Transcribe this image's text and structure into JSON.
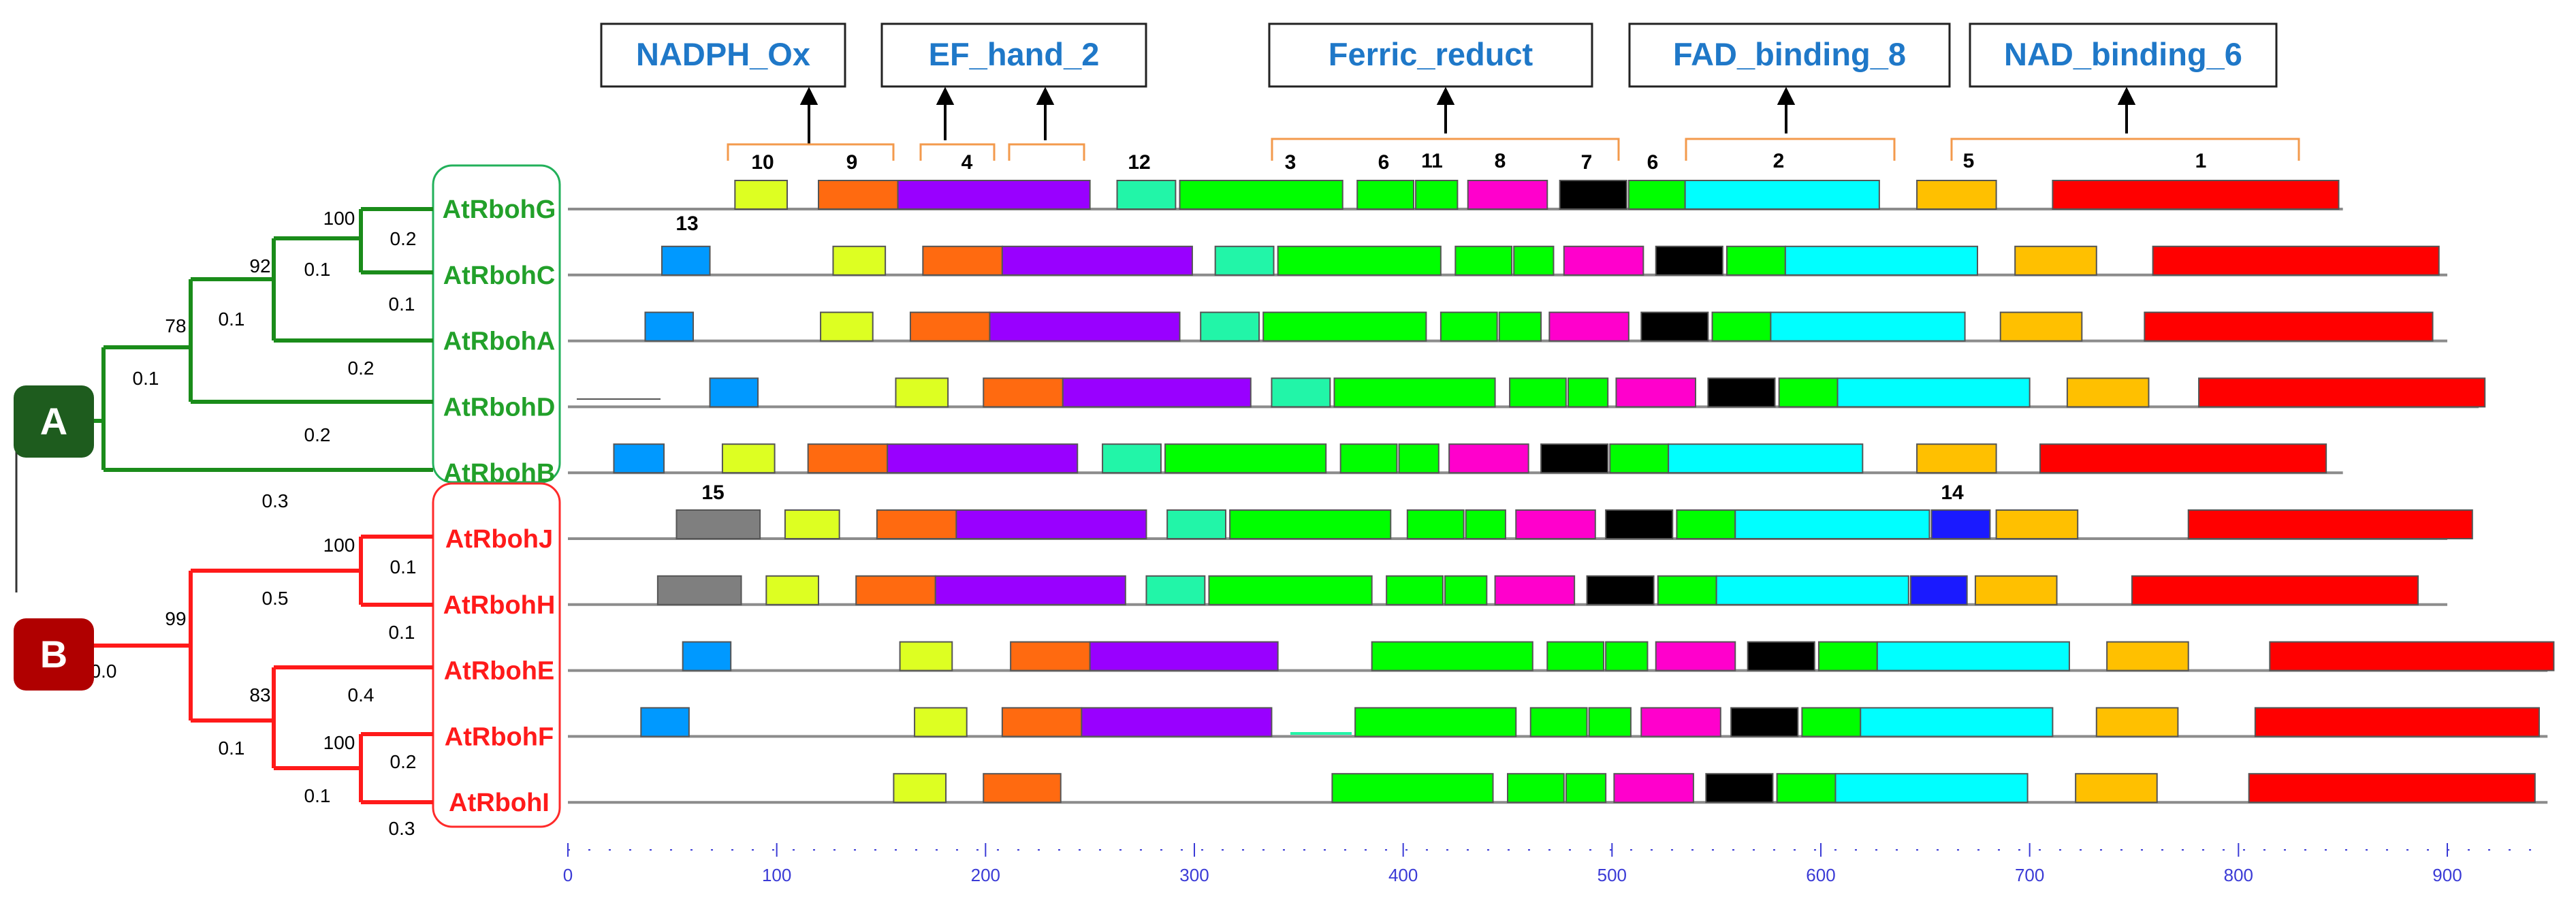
{
  "domains": [
    {
      "label": "NADPH_Ox"
    },
    {
      "label": "EF_hand_2"
    },
    {
      "label": "Ferric_reduct"
    },
    {
      "label": "FAD_binding_8"
    },
    {
      "label": "NAD_binding_6"
    }
  ],
  "motif_colors": {
    "1": "#ff0000",
    "2": "#00ffff",
    "3": "#00ff00",
    "4": "#9900ff",
    "5": "#ffc000",
    "6": "#00ff00",
    "7": "#000000",
    "8": "#ff00cc",
    "9": "#ff6a10",
    "10": "#ddff22",
    "11": "#00ff00",
    "12": "#22f5a8",
    "13": "#0099ff",
    "14": "#1a1aff",
    "15": "#7f7f7f"
  },
  "motif_header_labels": [
    "10",
    "9",
    "4",
    "12",
    "3",
    "6",
    "11",
    "8",
    "7",
    "6",
    "2",
    "5",
    "1"
  ],
  "extra_labels": [
    "13",
    "15",
    "14"
  ],
  "clades": [
    {
      "letter": "A",
      "color": "#1e5c1e",
      "line_color": "#1a8c1a"
    },
    {
      "letter": "B",
      "color": "#b00000",
      "line_color": "#ff1a1a"
    }
  ],
  "proteins": [
    {
      "name": "AtRbohG",
      "clade": "A",
      "line": [
        0,
        850
      ],
      "motifs": [
        [
          80,
          105,
          "10"
        ],
        [
          120,
          158,
          "9"
        ],
        [
          158,
          250,
          "4"
        ],
        [
          263,
          291,
          "12"
        ],
        [
          293,
          371,
          "3"
        ],
        [
          378,
          405,
          "6"
        ],
        [
          406,
          426,
          "11"
        ],
        [
          431,
          469,
          "8"
        ],
        [
          475,
          507,
          "7"
        ],
        [
          508,
          535,
          "6"
        ],
        [
          535,
          628,
          "2"
        ],
        [
          646,
          684,
          "5"
        ],
        [
          711,
          848,
          "1"
        ]
      ]
    },
    {
      "name": "AtRbohC",
      "clade": "A",
      "line": [
        0,
        900
      ],
      "motifs": [
        [
          45,
          68,
          "13"
        ],
        [
          127,
          152,
          "10"
        ],
        [
          170,
          208,
          "9"
        ],
        [
          208,
          299,
          "4"
        ],
        [
          310,
          338,
          "12"
        ],
        [
          340,
          418,
          "3"
        ],
        [
          425,
          452,
          "6"
        ],
        [
          453,
          472,
          "11"
        ],
        [
          477,
          515,
          "8"
        ],
        [
          521,
          553,
          "7"
        ],
        [
          555,
          583,
          "6"
        ],
        [
          583,
          675,
          "2"
        ],
        [
          693,
          732,
          "5"
        ],
        [
          759,
          896,
          "1"
        ]
      ]
    },
    {
      "name": "AtRbohA",
      "clade": "A",
      "line": [
        0,
        900
      ],
      "motifs": [
        [
          37,
          60,
          "13"
        ],
        [
          121,
          146,
          "10"
        ],
        [
          164,
          202,
          "9"
        ],
        [
          202,
          293,
          "4"
        ],
        [
          303,
          331,
          "12"
        ],
        [
          333,
          411,
          "3"
        ],
        [
          418,
          445,
          "6"
        ],
        [
          446,
          466,
          "11"
        ],
        [
          470,
          508,
          "8"
        ],
        [
          514,
          546,
          "7"
        ],
        [
          548,
          576,
          "6"
        ],
        [
          576,
          669,
          "2"
        ],
        [
          686,
          725,
          "5"
        ],
        [
          755,
          893,
          "1"
        ]
      ]
    },
    {
      "name": "AtRbohD",
      "clade": "A",
      "line": [
        0,
        915
      ],
      "motifs": [
        [
          68,
          91,
          "13"
        ],
        [
          157,
          182,
          "10"
        ],
        [
          199,
          237,
          "9"
        ],
        [
          237,
          327,
          "4"
        ],
        [
          337,
          365,
          "12"
        ],
        [
          367,
          444,
          "3"
        ],
        [
          451,
          478,
          "6"
        ],
        [
          479,
          498,
          "11"
        ],
        [
          502,
          540,
          "8"
        ],
        [
          546,
          578,
          "7"
        ],
        [
          580,
          608,
          "6"
        ],
        [
          608,
          700,
          "2"
        ],
        [
          718,
          757,
          "5"
        ],
        [
          781,
          918,
          "1"
        ]
      ]
    },
    {
      "name": "AtRbohB",
      "clade": "A",
      "line": [
        0,
        850
      ],
      "motifs": [
        [
          22,
          46,
          "13"
        ],
        [
          74,
          99,
          "10"
        ],
        [
          115,
          153,
          "9"
        ],
        [
          153,
          244,
          "4"
        ],
        [
          256,
          284,
          "12"
        ],
        [
          286,
          363,
          "3"
        ],
        [
          370,
          397,
          "6"
        ],
        [
          398,
          417,
          "11"
        ],
        [
          422,
          460,
          "8"
        ],
        [
          466,
          498,
          "7"
        ],
        [
          499,
          527,
          "6"
        ],
        [
          527,
          620,
          "2"
        ],
        [
          646,
          684,
          "5"
        ],
        [
          705,
          842,
          "1"
        ]
      ]
    },
    {
      "name": "AtRbohJ",
      "clade": "B",
      "line": [
        0,
        900
      ],
      "motifs": [
        [
          52,
          92,
          "15"
        ],
        [
          104,
          130,
          "10"
        ],
        [
          148,
          186,
          "9"
        ],
        [
          186,
          277,
          "4"
        ],
        [
          287,
          315,
          "12"
        ],
        [
          317,
          394,
          "3"
        ],
        [
          402,
          429,
          "6"
        ],
        [
          430,
          449,
          "11"
        ],
        [
          454,
          492,
          "8"
        ],
        [
          497,
          529,
          "7"
        ],
        [
          531,
          559,
          "6"
        ],
        [
          559,
          652,
          "2"
        ],
        [
          653,
          681,
          "14"
        ],
        [
          684,
          723,
          "5"
        ],
        [
          776,
          912,
          "1"
        ]
      ]
    },
    {
      "name": "AtRbohH",
      "clade": "B",
      "line": [
        0,
        900
      ],
      "motifs": [
        [
          43,
          83,
          "15"
        ],
        [
          95,
          120,
          "10"
        ],
        [
          138,
          176,
          "9"
        ],
        [
          176,
          267,
          "4"
        ],
        [
          277,
          305,
          "12"
        ],
        [
          307,
          385,
          "3"
        ],
        [
          392,
          419,
          "6"
        ],
        [
          420,
          440,
          "11"
        ],
        [
          444,
          482,
          "8"
        ],
        [
          488,
          520,
          "7"
        ],
        [
          522,
          550,
          "6"
        ],
        [
          550,
          642,
          "2"
        ],
        [
          643,
          670,
          "14"
        ],
        [
          674,
          713,
          "5"
        ],
        [
          749,
          886,
          "1"
        ]
      ]
    },
    {
      "name": "AtRbohE",
      "clade": "B",
      "line": [
        0,
        948
      ],
      "motifs": [
        [
          55,
          78,
          "13"
        ],
        [
          159,
          184,
          "10"
        ],
        [
          212,
          250,
          "9"
        ],
        [
          250,
          340,
          "4"
        ],
        [
          385,
          462,
          "3"
        ],
        [
          469,
          496,
          "6"
        ],
        [
          497,
          517,
          "11"
        ],
        [
          521,
          559,
          "8"
        ],
        [
          565,
          597,
          "7"
        ],
        [
          599,
          627,
          "6"
        ],
        [
          627,
          719,
          "2"
        ],
        [
          737,
          776,
          "5"
        ],
        [
          815,
          951,
          "1"
        ]
      ]
    },
    {
      "name": "AtRbohF",
      "clade": "B",
      "line": [
        0,
        948
      ],
      "motifs": [
        [
          35,
          58,
          "13"
        ],
        [
          166,
          191,
          "10"
        ],
        [
          208,
          246,
          "9"
        ],
        [
          246,
          337,
          "4"
        ],
        [
          377,
          454,
          "3"
        ],
        [
          461,
          488,
          "6"
        ],
        [
          489,
          509,
          "11"
        ],
        [
          514,
          552,
          "8"
        ],
        [
          557,
          589,
          "7"
        ],
        [
          591,
          619,
          "6"
        ],
        [
          619,
          711,
          "2"
        ],
        [
          732,
          771,
          "5"
        ],
        [
          808,
          944,
          "1"
        ]
      ]
    },
    {
      "name": "AtRbohI",
      "clade": "B",
      "line": [
        0,
        948
      ],
      "motifs": [
        [
          156,
          181,
          "10"
        ],
        [
          199,
          236,
          "9"
        ],
        [
          366,
          443,
          "3"
        ],
        [
          450,
          477,
          "6"
        ],
        [
          478,
          497,
          "11"
        ],
        [
          501,
          539,
          "8"
        ],
        [
          545,
          577,
          "7"
        ],
        [
          579,
          607,
          "6"
        ],
        [
          607,
          699,
          "2"
        ],
        [
          722,
          761,
          "5"
        ],
        [
          805,
          942,
          "1"
        ]
      ]
    }
  ],
  "tree": {
    "bootstrap": [
      "100",
      "92",
      "78",
      "100",
      "99",
      "83",
      "100"
    ],
    "branch_lengths": [
      "0.2",
      "0.1",
      "0.1",
      "0.1",
      "0.2",
      "0.1",
      "0.2",
      "0.3",
      "0.1",
      "0.5",
      "0.1",
      "0.0",
      "0.4",
      "0.1",
      "0.2",
      "0.1",
      "0.3"
    ]
  },
  "axis": {
    "min": 0,
    "max": 900,
    "step": 100,
    "ticks": [
      "0",
      "100",
      "200",
      "300",
      "400",
      "500",
      "600",
      "700",
      "800",
      "900"
    ]
  }
}
